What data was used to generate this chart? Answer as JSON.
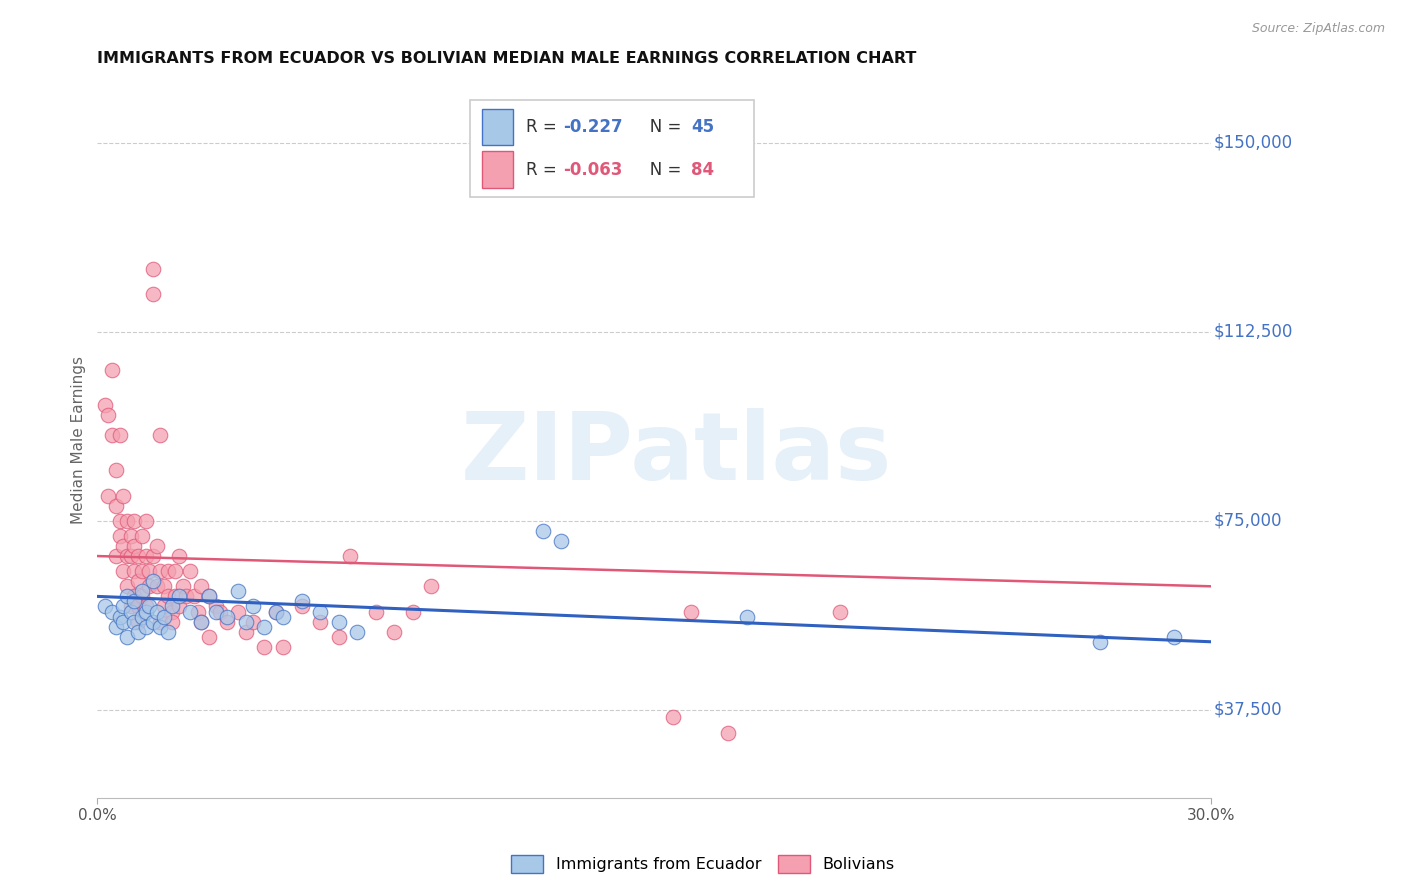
{
  "title": "IMMIGRANTS FROM ECUADOR VS BOLIVIAN MEDIAN MALE EARNINGS CORRELATION CHART",
  "source": "Source: ZipAtlas.com",
  "ylabel": "Median Male Earnings",
  "y_ticks": [
    37500,
    75000,
    112500,
    150000
  ],
  "y_tick_labels": [
    "$37,500",
    "$75,000",
    "$112,500",
    "$150,000"
  ],
  "x_range": [
    0.0,
    0.3
  ],
  "y_range": [
    20000,
    162000
  ],
  "watermark_text": "ZIPatlas",
  "legend_r1": "-0.227",
  "legend_n1": "45",
  "legend_r2": "-0.063",
  "legend_n2": "84",
  "legend_label1": "Immigrants from Ecuador",
  "legend_label2": "Bolivians",
  "blue_fill": "#A8C8E8",
  "pink_fill": "#F4A0B0",
  "blue_edge": "#4472C4",
  "pink_edge": "#E05878",
  "blue_line": "#3060C0",
  "pink_line": "#E05878",
  "scatter_blue": [
    [
      0.002,
      58000
    ],
    [
      0.004,
      57000
    ],
    [
      0.005,
      54000
    ],
    [
      0.006,
      56000
    ],
    [
      0.007,
      55000
    ],
    [
      0.007,
      58000
    ],
    [
      0.008,
      52000
    ],
    [
      0.008,
      60000
    ],
    [
      0.009,
      57000
    ],
    [
      0.01,
      55000
    ],
    [
      0.01,
      59000
    ],
    [
      0.011,
      53000
    ],
    [
      0.012,
      56000
    ],
    [
      0.012,
      61000
    ],
    [
      0.013,
      54000
    ],
    [
      0.013,
      57000
    ],
    [
      0.014,
      58000
    ],
    [
      0.015,
      55000
    ],
    [
      0.015,
      63000
    ],
    [
      0.016,
      57000
    ],
    [
      0.017,
      54000
    ],
    [
      0.018,
      56000
    ],
    [
      0.019,
      53000
    ],
    [
      0.02,
      58000
    ],
    [
      0.022,
      60000
    ],
    [
      0.025,
      57000
    ],
    [
      0.028,
      55000
    ],
    [
      0.03,
      60000
    ],
    [
      0.032,
      57000
    ],
    [
      0.035,
      56000
    ],
    [
      0.038,
      61000
    ],
    [
      0.04,
      55000
    ],
    [
      0.042,
      58000
    ],
    [
      0.045,
      54000
    ],
    [
      0.048,
      57000
    ],
    [
      0.05,
      56000
    ],
    [
      0.055,
      59000
    ],
    [
      0.06,
      57000
    ],
    [
      0.065,
      55000
    ],
    [
      0.07,
      53000
    ],
    [
      0.12,
      73000
    ],
    [
      0.125,
      71000
    ],
    [
      0.175,
      56000
    ],
    [
      0.27,
      51000
    ],
    [
      0.29,
      52000
    ]
  ],
  "scatter_pink": [
    [
      0.002,
      98000
    ],
    [
      0.003,
      96000
    ],
    [
      0.003,
      80000
    ],
    [
      0.004,
      105000
    ],
    [
      0.004,
      92000
    ],
    [
      0.005,
      85000
    ],
    [
      0.005,
      78000
    ],
    [
      0.005,
      68000
    ],
    [
      0.006,
      75000
    ],
    [
      0.006,
      72000
    ],
    [
      0.006,
      92000
    ],
    [
      0.007,
      80000
    ],
    [
      0.007,
      70000
    ],
    [
      0.007,
      65000
    ],
    [
      0.008,
      75000
    ],
    [
      0.008,
      68000
    ],
    [
      0.008,
      62000
    ],
    [
      0.009,
      72000
    ],
    [
      0.009,
      68000
    ],
    [
      0.009,
      58000
    ],
    [
      0.01,
      75000
    ],
    [
      0.01,
      70000
    ],
    [
      0.01,
      65000
    ],
    [
      0.01,
      60000
    ],
    [
      0.011,
      68000
    ],
    [
      0.011,
      63000
    ],
    [
      0.011,
      58000
    ],
    [
      0.011,
      55000
    ],
    [
      0.012,
      72000
    ],
    [
      0.012,
      65000
    ],
    [
      0.012,
      60000
    ],
    [
      0.013,
      75000
    ],
    [
      0.013,
      68000
    ],
    [
      0.013,
      58000
    ],
    [
      0.014,
      65000
    ],
    [
      0.014,
      62000
    ],
    [
      0.015,
      125000
    ],
    [
      0.015,
      120000
    ],
    [
      0.015,
      68000
    ],
    [
      0.016,
      62000
    ],
    [
      0.016,
      70000
    ],
    [
      0.017,
      92000
    ],
    [
      0.017,
      65000
    ],
    [
      0.017,
      55000
    ],
    [
      0.018,
      62000
    ],
    [
      0.018,
      58000
    ],
    [
      0.019,
      65000
    ],
    [
      0.019,
      60000
    ],
    [
      0.02,
      57000
    ],
    [
      0.02,
      55000
    ],
    [
      0.021,
      65000
    ],
    [
      0.021,
      60000
    ],
    [
      0.022,
      68000
    ],
    [
      0.022,
      58000
    ],
    [
      0.023,
      62000
    ],
    [
      0.024,
      60000
    ],
    [
      0.025,
      65000
    ],
    [
      0.026,
      60000
    ],
    [
      0.027,
      57000
    ],
    [
      0.028,
      62000
    ],
    [
      0.028,
      55000
    ],
    [
      0.03,
      60000
    ],
    [
      0.03,
      52000
    ],
    [
      0.032,
      58000
    ],
    [
      0.033,
      57000
    ],
    [
      0.035,
      55000
    ],
    [
      0.038,
      57000
    ],
    [
      0.04,
      53000
    ],
    [
      0.042,
      55000
    ],
    [
      0.045,
      50000
    ],
    [
      0.048,
      57000
    ],
    [
      0.05,
      50000
    ],
    [
      0.055,
      58000
    ],
    [
      0.06,
      55000
    ],
    [
      0.065,
      52000
    ],
    [
      0.068,
      68000
    ],
    [
      0.075,
      57000
    ],
    [
      0.08,
      53000
    ],
    [
      0.085,
      57000
    ],
    [
      0.09,
      62000
    ],
    [
      0.155,
      36000
    ],
    [
      0.16,
      57000
    ],
    [
      0.17,
      33000
    ],
    [
      0.2,
      57000
    ]
  ],
  "blue_trend_x": [
    0.0,
    0.3
  ],
  "blue_trend_y": [
    60000,
    51000
  ],
  "pink_trend_x": [
    0.0,
    0.3
  ],
  "pink_trend_y": [
    68000,
    62000
  ]
}
